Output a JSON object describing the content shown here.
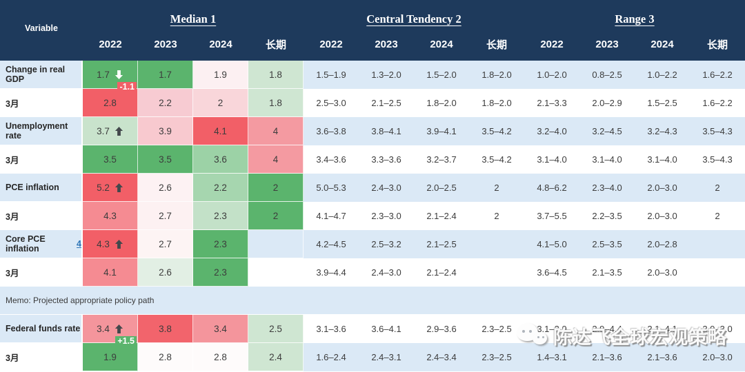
{
  "colors": {
    "header_bg": "#1e3a5c",
    "band_blue": "#dbe9f6",
    "band_white": "#ffffff",
    "strong_green": "#5bb46d",
    "strong_red": "#f25f67",
    "value_text": "#3c3c3c",
    "footnote_link": "#2e75b6"
  },
  "chart_data": {
    "type": "table",
    "variable_header": "Variable",
    "column_groups": [
      {
        "title": "Median 1"
      },
      {
        "title": "Central Tendency 2"
      },
      {
        "title": "Range 3"
      }
    ],
    "years": [
      "2022",
      "2023",
      "2024",
      "长期"
    ],
    "rows": [
      {
        "label": "Change in real GDP",
        "label_bg": "blue",
        "value_bg": "blue",
        "median": [
          {
            "v": "1.7",
            "bg": "#5bb46d",
            "arrow": "down"
          },
          {
            "v": "1.7",
            "bg": "#5bb46d"
          },
          {
            "v": "1.9",
            "bg": "#fcf0f2"
          },
          {
            "v": "1.8",
            "bg": "#cfe6d2"
          }
        ],
        "ct": [
          "1.5–1.9",
          "1.3–2.0",
          "1.5–2.0",
          "1.8–2.0"
        ],
        "range": [
          "1.0–2.0",
          "0.8–2.5",
          "1.0–2.2",
          "1.6–2.2"
        ]
      },
      {
        "label": "3月",
        "label_bg": "white",
        "value_bg": "white",
        "median": [
          {
            "v": "2.8",
            "bg": "#f25f67",
            "note": "-1.1"
          },
          {
            "v": "2.2",
            "bg": "#f7cbd2"
          },
          {
            "v": "2",
            "bg": "#f9d6da"
          },
          {
            "v": "1.8",
            "bg": "#cfe6d2"
          }
        ],
        "ct": [
          "2.5–3.0",
          "2.1–2.5",
          "1.8–2.0",
          "1.8–2.0"
        ],
        "range": [
          "2.1–3.3",
          "2.0–2.9",
          "1.5–2.5",
          "1.6–2.2"
        ]
      },
      {
        "label": "Unemployment rate",
        "label_bg": "blue",
        "value_bg": "blue",
        "median": [
          {
            "v": "3.7",
            "bg": "#c9e3cc",
            "arrow": "up"
          },
          {
            "v": "3.9",
            "bg": "#f8c9cf"
          },
          {
            "v": "4.1",
            "bg": "#f25f67"
          },
          {
            "v": "4",
            "bg": "#f49aa1"
          }
        ],
        "ct": [
          "3.6–3.8",
          "3.8–4.1",
          "3.9–4.1",
          "3.5–4.2"
        ],
        "range": [
          "3.2–4.0",
          "3.2–4.5",
          "3.2–4.3",
          "3.5–4.3"
        ]
      },
      {
        "label": "3月",
        "label_bg": "white",
        "value_bg": "white",
        "median": [
          {
            "v": "3.5",
            "bg": "#5bb46d"
          },
          {
            "v": "3.5",
            "bg": "#5bb46d"
          },
          {
            "v": "3.6",
            "bg": "#9cd2a6"
          },
          {
            "v": "4",
            "bg": "#f49aa1"
          }
        ],
        "ct": [
          "3.4–3.6",
          "3.3–3.6",
          "3.2–3.7",
          "3.5–4.2"
        ],
        "range": [
          "3.1–4.0",
          "3.1–4.0",
          "3.1–4.0",
          "3.5–4.3"
        ]
      },
      {
        "label": "PCE inflation",
        "label_bg": "blue",
        "value_bg": "blue",
        "median": [
          {
            "v": "5.2",
            "bg": "#f25f67",
            "arrow": "up"
          },
          {
            "v": "2.6",
            "bg": "#fdf2f3"
          },
          {
            "v": "2.2",
            "bg": "#a6d6af"
          },
          {
            "v": "2",
            "bg": "#5bb46d"
          }
        ],
        "ct": [
          "5.0–5.3",
          "2.4–3.0",
          "2.0–2.5",
          "2"
        ],
        "range": [
          "4.8–6.2",
          "2.3–4.0",
          "2.0–3.0",
          "2"
        ]
      },
      {
        "label": "3月",
        "label_bg": "white",
        "value_bg": "white",
        "median": [
          {
            "v": "4.3",
            "bg": "#f58b92"
          },
          {
            "v": "2.7",
            "bg": "#fdf1f2"
          },
          {
            "v": "2.3",
            "bg": "#c3e1c8"
          },
          {
            "v": "2",
            "bg": "#5bb46d"
          }
        ],
        "ct": [
          "4.1–4.7",
          "2.3–3.0",
          "2.1–2.4",
          "2"
        ],
        "range": [
          "3.7–5.5",
          "2.2–3.5",
          "2.0–3.0",
          "2"
        ]
      },
      {
        "label": "Core PCE inflation",
        "label_link": "4",
        "label_bg": "blue",
        "value_bg": "blue",
        "median": [
          {
            "v": "4.3",
            "bg": "#f25f67",
            "arrow": "up"
          },
          {
            "v": "2.7",
            "bg": "#fdf4f4"
          },
          {
            "v": "2.3",
            "bg": "#5bb46d"
          },
          {
            "v": "",
            "bg": ""
          }
        ],
        "ct": [
          "4.2–4.5",
          "2.5–3.2",
          "2.1–2.5",
          ""
        ],
        "range": [
          "4.1–5.0",
          "2.5–3.5",
          "2.0–2.8",
          ""
        ]
      },
      {
        "label": "3月",
        "label_bg": "white",
        "value_bg": "white",
        "median": [
          {
            "v": "4.1",
            "bg": "#f58b92"
          },
          {
            "v": "2.6",
            "bg": "#e2efe4"
          },
          {
            "v": "2.3",
            "bg": "#5bb46d"
          },
          {
            "v": "",
            "bg": ""
          }
        ],
        "ct": [
          "3.9–4.4",
          "2.4–3.0",
          "2.1–2.4",
          ""
        ],
        "range": [
          "3.6–4.5",
          "2.1–3.5",
          "2.0–3.0",
          ""
        ]
      },
      {
        "type": "memo",
        "label": "Memo: Projected appropriate policy path"
      },
      {
        "label": "Federal funds rate",
        "label_bg": "blue",
        "value_bg": "white",
        "median": [
          {
            "v": "3.4",
            "bg": "#f4959c",
            "arrow": "up"
          },
          {
            "v": "3.8",
            "bg": "#f2646c"
          },
          {
            "v": "3.4",
            "bg": "#f4959c"
          },
          {
            "v": "2.5",
            "bg": "#cfe6d2"
          }
        ],
        "ct": [
          "3.1–3.6",
          "3.6–4.1",
          "2.9–3.6",
          "2.3–2.5"
        ],
        "range": [
          "3.1–3.9",
          "2.9–4.4",
          "2.1–4.1",
          "2.0–3.0"
        ]
      },
      {
        "label": "3月",
        "label_bg": "white",
        "value_bg": "blue",
        "median": [
          {
            "v": "1.9",
            "bg": "#5bb46d",
            "note": "+1.5"
          },
          {
            "v": "2.8",
            "bg": "#fefbfb"
          },
          {
            "v": "2.8",
            "bg": "#fefbfb"
          },
          {
            "v": "2.4",
            "bg": "#cfe6d2"
          }
        ],
        "ct": [
          "1.6–2.4",
          "2.4–3.1",
          "2.4–3.4",
          "2.3–2.5"
        ],
        "range": [
          "1.4–3.1",
          "2.1–3.6",
          "2.1–3.6",
          "2.0–3.0"
        ]
      }
    ]
  },
  "watermark": {
    "text": "陈达飞全球宏观策略",
    "icon": "wechat-icon"
  }
}
